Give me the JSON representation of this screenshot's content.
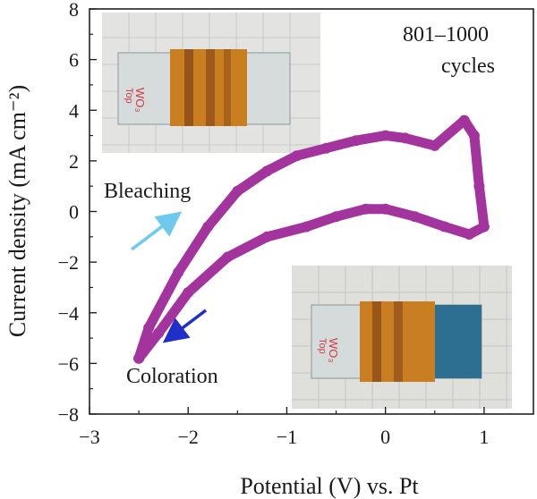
{
  "chart_data": {
    "type": "line",
    "title": "",
    "xlabel": "Potential (V) vs. Pt",
    "ylabel": "Current density (mA cm⁻²)",
    "xlim": [
      -3,
      1.5
    ],
    "ylim": [
      -8,
      8
    ],
    "xticks": [
      -3,
      -2,
      -1,
      0,
      1
    ],
    "yticks": [
      -8,
      -6,
      -4,
      -2,
      0,
      2,
      4,
      6,
      8
    ],
    "xtick_labels": [
      "−3",
      "−2",
      "−1",
      "0",
      "1"
    ],
    "ytick_labels": [
      "−8",
      "−6",
      "−4",
      "−2",
      "0",
      "2",
      "4",
      "6",
      "8"
    ],
    "grid": false,
    "series": [
      {
        "color": "#a3349e",
        "x": [
          -2.5,
          -2.3,
          -2.0,
          -1.6,
          -1.2,
          -0.8,
          -0.5,
          -0.2,
          0.0,
          0.3,
          0.6,
          0.85,
          1.0,
          0.95,
          0.9,
          0.8,
          0.5,
          0.2,
          0.0,
          -0.3,
          -0.6,
          -0.9,
          -1.2,
          -1.5,
          -1.8,
          -2.1,
          -2.4,
          -2.5
        ],
        "y": [
          -5.8,
          -4.8,
          -3.2,
          -1.8,
          -1.0,
          -0.6,
          -0.2,
          0.1,
          0.1,
          -0.2,
          -0.6,
          -0.9,
          -0.6,
          1.0,
          3.0,
          3.6,
          2.6,
          2.9,
          3.0,
          2.8,
          2.5,
          2.2,
          1.6,
          0.8,
          -0.6,
          -2.4,
          -4.6,
          -5.8
        ]
      }
    ],
    "annotations": {
      "cycles_line1": "801–1000",
      "cycles_line2": "cycles",
      "bleaching": "Bleaching",
      "coloration": "Coloration"
    },
    "arrow_colors": {
      "bleaching": "#6ec9ef",
      "coloration": "#1f2fc7"
    }
  }
}
